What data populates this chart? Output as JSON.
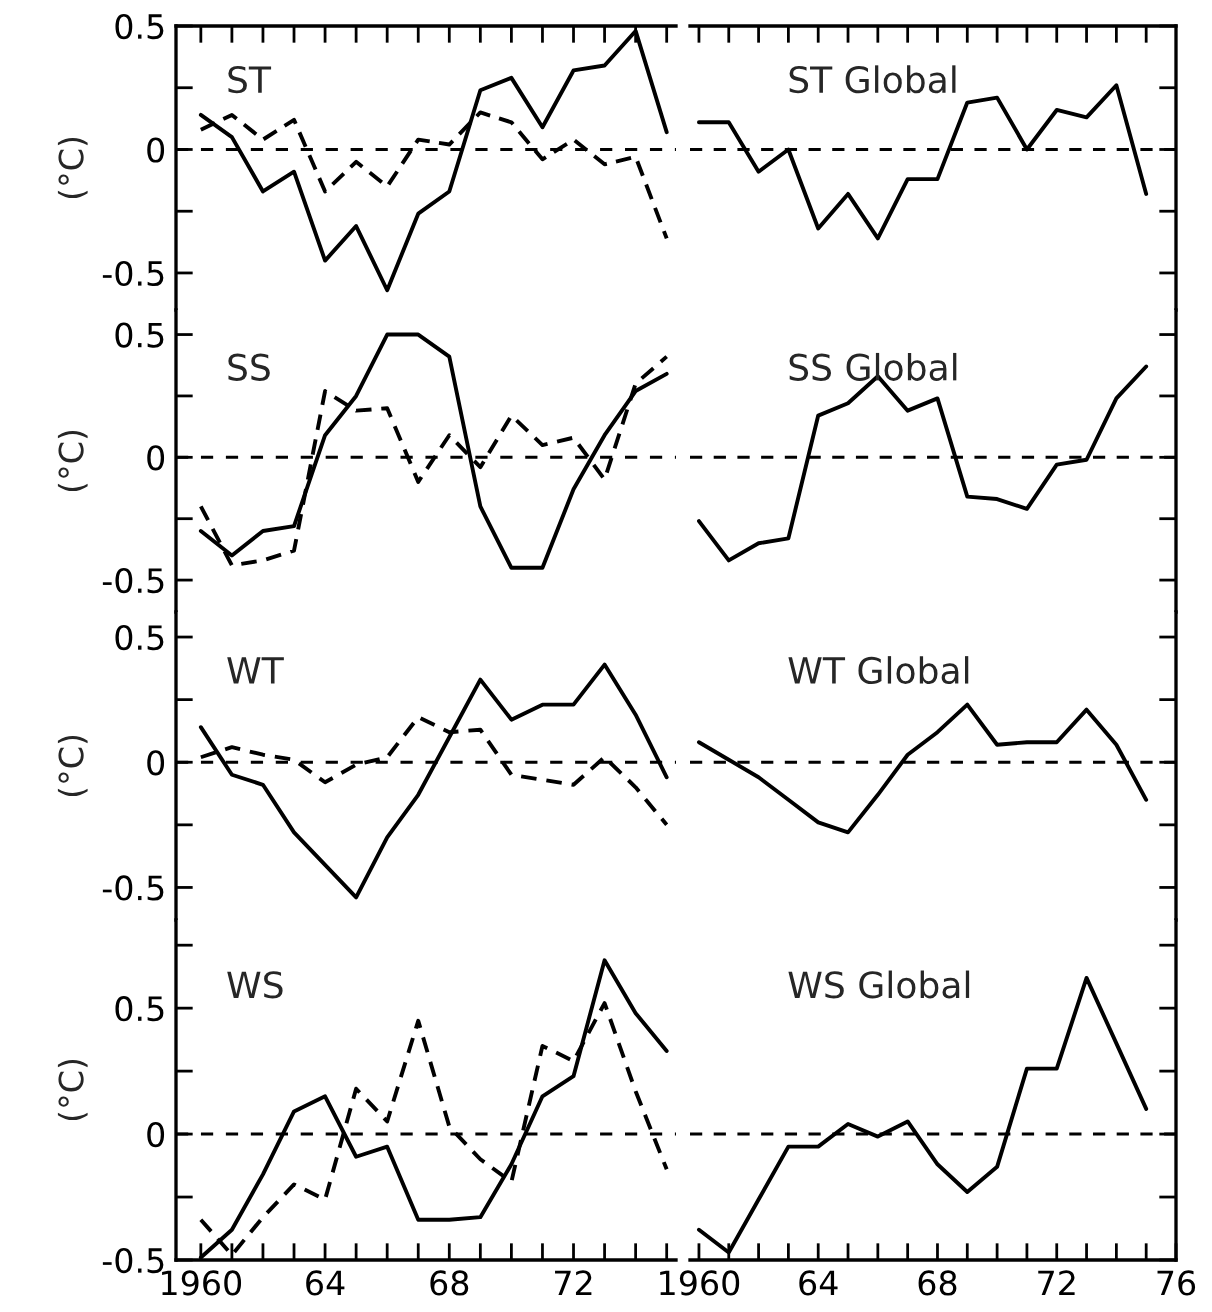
{
  "chart_data": [
    {
      "type": "line",
      "title": "ST",
      "ylabel": "(°C)",
      "x": [
        1960,
        1961,
        1962,
        1963,
        1964,
        1965,
        1966,
        1967,
        1968,
        1969,
        1970,
        1971,
        1972,
        1973,
        1974,
        1975
      ],
      "xlim": [
        1959.2,
        1975.3
      ],
      "xticks": [
        {
          "value": 1960,
          "label": null
        },
        {
          "value": 1961,
          "label": null
        },
        {
          "value": 1962,
          "label": null
        },
        {
          "value": 1963,
          "label": null
        },
        {
          "value": 1964,
          "label": null
        },
        {
          "value": 1965,
          "label": null
        },
        {
          "value": 1966,
          "label": null
        },
        {
          "value": 1967,
          "label": null
        },
        {
          "value": 1968,
          "label": null
        },
        {
          "value": 1969,
          "label": null
        },
        {
          "value": 1970,
          "label": null
        },
        {
          "value": 1971,
          "label": null
        },
        {
          "value": 1972,
          "label": null
        },
        {
          "value": 1973,
          "label": null
        },
        {
          "value": 1974,
          "label": null
        },
        {
          "value": 1975,
          "label": null
        }
      ],
      "ylim": [
        -0.65,
        0.5
      ],
      "yticks": [
        -0.5,
        {
          "value": -0.25,
          "label": null
        },
        0,
        {
          "value": 0.25,
          "label": null
        },
        0.5
      ],
      "tick_labels": "y",
      "grid": false,
      "legend": false,
      "ref_lines": [
        {
          "axis": "y",
          "value": 0,
          "color": "#000000",
          "line_style": "dashed"
        }
      ],
      "series": [
        {
          "color": "#000000",
          "line_style": "solid",
          "values": [
            0.14,
            0.05,
            -0.17,
            -0.09,
            -0.45,
            -0.31,
            -0.57,
            -0.26,
            -0.17,
            0.24,
            0.29,
            0.09,
            0.32,
            0.34,
            0.48,
            0.07
          ]
        },
        {
          "color": "#000000",
          "line_style": "dashed",
          "values": [
            0.08,
            0.14,
            0.04,
            0.12,
            -0.17,
            -0.05,
            -0.15,
            0.04,
            0.02,
            0.15,
            0.11,
            -0.04,
            0.04,
            -0.06,
            -0.03,
            -0.36
          ]
        }
      ]
    },
    {
      "type": "line",
      "title": "ST Global",
      "x": [
        1960,
        1961,
        1962,
        1963,
        1964,
        1965,
        1966,
        1967,
        1968,
        1969,
        1970,
        1971,
        1972,
        1973,
        1974,
        1975
      ],
      "xlim": [
        1959.7,
        1976
      ],
      "xticks": [
        {
          "value": 1960,
          "label": null
        },
        {
          "value": 1961,
          "label": null
        },
        {
          "value": 1962,
          "label": null
        },
        {
          "value": 1963,
          "label": null
        },
        {
          "value": 1964,
          "label": null
        },
        {
          "value": 1965,
          "label": null
        },
        {
          "value": 1966,
          "label": null
        },
        {
          "value": 1967,
          "label": null
        },
        {
          "value": 1968,
          "label": null
        },
        {
          "value": 1969,
          "label": null
        },
        {
          "value": 1970,
          "label": null
        },
        {
          "value": 1971,
          "label": null
        },
        {
          "value": 1972,
          "label": null
        },
        {
          "value": 1973,
          "label": null
        },
        {
          "value": 1974,
          "label": null
        },
        {
          "value": 1975,
          "label": null
        }
      ],
      "ylim": [
        -0.65,
        0.5
      ],
      "yticks": [
        {
          "value": -0.5,
          "label": null
        },
        {
          "value": -0.25,
          "label": null
        },
        {
          "value": 0,
          "label": null
        },
        {
          "value": 0.25,
          "label": null
        },
        {
          "value": 0.5,
          "label": null
        }
      ],
      "tick_labels": false,
      "grid": false,
      "legend": false,
      "ref_lines": [
        {
          "axis": "y",
          "value": 0,
          "color": "#000000",
          "line_style": "dashed"
        }
      ],
      "series": [
        {
          "color": "#000000",
          "line_style": "solid",
          "values": [
            0.11,
            0.11,
            -0.09,
            0,
            -0.32,
            -0.18,
            -0.36,
            -0.12,
            -0.12,
            0.19,
            0.21,
            0,
            0.16,
            0.13,
            0.26,
            -0.18
          ]
        }
      ]
    },
    {
      "type": "line",
      "title": "SS",
      "ylabel": "(°C)",
      "x": [
        1960,
        1961,
        1962,
        1963,
        1964,
        1965,
        1966,
        1967,
        1968,
        1969,
        1970,
        1971,
        1972,
        1973,
        1974,
        1975
      ],
      "xlim": [
        1959.2,
        1975.3
      ],
      "ylim": [
        -0.63,
        0.6
      ],
      "yticks": [
        -0.5,
        {
          "value": -0.25,
          "label": null
        },
        0,
        {
          "value": 0.25,
          "label": null
        },
        0.5
      ],
      "tick_labels": "y",
      "grid": false,
      "legend": false,
      "ref_lines": [
        {
          "axis": "y",
          "value": 0,
          "color": "#000000",
          "line_style": "dashed"
        }
      ],
      "series": [
        {
          "color": "#000000",
          "line_style": "solid",
          "values": [
            -0.3,
            -0.4,
            -0.3,
            -0.28,
            0.09,
            0.25,
            0.5,
            0.5,
            0.41,
            -0.2,
            -0.45,
            -0.45,
            -0.13,
            0.09,
            0.27,
            0.34
          ]
        },
        {
          "color": "#000000",
          "line_style": "dashed",
          "values": [
            -0.2,
            -0.44,
            -0.42,
            -0.38,
            0.27,
            0.19,
            0.2,
            -0.1,
            0.09,
            -0.04,
            0.17,
            0.05,
            0.08,
            -0.09,
            0.3,
            0.41
          ]
        }
      ]
    },
    {
      "type": "line",
      "title": "SS Global",
      "x": [
        1960,
        1961,
        1962,
        1963,
        1964,
        1965,
        1966,
        1967,
        1968,
        1969,
        1970,
        1971,
        1972,
        1973,
        1974,
        1975
      ],
      "xlim": [
        1959.7,
        1976
      ],
      "ylim": [
        -0.63,
        0.6
      ],
      "yticks": [
        {
          "value": -0.5,
          "label": null
        },
        {
          "value": -0.25,
          "label": null
        },
        {
          "value": 0,
          "label": null
        },
        {
          "value": 0.25,
          "label": null
        },
        {
          "value": 0.5,
          "label": null
        }
      ],
      "tick_labels": false,
      "grid": false,
      "legend": false,
      "ref_lines": [
        {
          "axis": "y",
          "value": 0,
          "color": "#000000",
          "line_style": "dashed"
        }
      ],
      "series": [
        {
          "color": "#000000",
          "line_style": "solid",
          "values": [
            -0.26,
            -0.42,
            -0.35,
            -0.33,
            0.17,
            0.22,
            0.33,
            0.19,
            0.24,
            -0.16,
            -0.17,
            -0.21,
            -0.03,
            -0.01,
            0.24,
            0.37
          ]
        }
      ]
    },
    {
      "type": "line",
      "title": "WT",
      "ylabel": "(°C)",
      "x": [
        1960,
        1961,
        1962,
        1963,
        1964,
        1965,
        1966,
        1967,
        1968,
        1969,
        1970,
        1971,
        1972,
        1973,
        1974,
        1975
      ],
      "xlim": [
        1959.2,
        1975.3
      ],
      "ylim": [
        -0.63,
        0.6
      ],
      "yticks": [
        -0.5,
        {
          "value": -0.25,
          "label": null
        },
        0,
        {
          "value": 0.25,
          "label": null
        },
        0.5
      ],
      "tick_labels": "y",
      "grid": false,
      "legend": false,
      "ref_lines": [
        {
          "axis": "y",
          "value": 0,
          "color": "#000000",
          "line_style": "dashed"
        }
      ],
      "series": [
        {
          "color": "#000000",
          "line_style": "solid",
          "values": [
            0.14,
            -0.05,
            -0.09,
            -0.28,
            -0.41,
            -0.54,
            -0.3,
            -0.13,
            0.1,
            0.33,
            0.17,
            0.23,
            0.23,
            0.39,
            0.19,
            -0.06
          ]
        },
        {
          "color": "#000000",
          "line_style": "dashed",
          "values": [
            0.02,
            0.06,
            0.03,
            0.01,
            -0.08,
            -0.01,
            0.02,
            0.18,
            0.12,
            0.13,
            -0.05,
            -0.07,
            -0.09,
            0.02,
            -0.1,
            -0.25
          ]
        }
      ]
    },
    {
      "type": "line",
      "title": "WT Global",
      "x": [
        1960,
        1961,
        1962,
        1963,
        1964,
        1965,
        1966,
        1967,
        1968,
        1969,
        1970,
        1971,
        1972,
        1973,
        1974,
        1975
      ],
      "xlim": [
        1959.7,
        1976
      ],
      "ylim": [
        -0.63,
        0.6
      ],
      "yticks": [
        {
          "value": -0.5,
          "label": null
        },
        {
          "value": -0.25,
          "label": null
        },
        {
          "value": 0,
          "label": null
        },
        {
          "value": 0.25,
          "label": null
        },
        {
          "value": 0.5,
          "label": null
        }
      ],
      "tick_labels": false,
      "grid": false,
      "legend": false,
      "ref_lines": [
        {
          "axis": "y",
          "value": 0,
          "color": "#000000",
          "line_style": "dashed"
        }
      ],
      "series": [
        {
          "color": "#000000",
          "line_style": "solid",
          "values": [
            0.08,
            0.01,
            -0.06,
            -0.15,
            -0.24,
            -0.28,
            -0.13,
            0.03,
            0.12,
            0.23,
            0.07,
            0.08,
            0.08,
            0.21,
            0.07,
            -0.15
          ]
        }
      ]
    },
    {
      "type": "line",
      "title": "WS",
      "ylabel": "(°C)",
      "x": [
        1960,
        1961,
        1962,
        1963,
        1964,
        1965,
        1966,
        1967,
        1968,
        1969,
        1970,
        1971,
        1972,
        1973,
        1974,
        1975
      ],
      "xlim": [
        1959.2,
        1975.3
      ],
      "xticks": [
        1960,
        {
          "value": 1961,
          "label": null
        },
        {
          "value": 1962,
          "label": null
        },
        {
          "value": 1963,
          "label": null
        },
        {
          "value": 1964,
          "label": "64"
        },
        {
          "value": 1965,
          "label": null
        },
        {
          "value": 1966,
          "label": null
        },
        {
          "value": 1967,
          "label": null
        },
        {
          "value": 1968,
          "label": "68"
        },
        {
          "value": 1969,
          "label": null
        },
        {
          "value": 1970,
          "label": null
        },
        {
          "value": 1971,
          "label": null
        },
        {
          "value": 1972,
          "label": "72"
        },
        {
          "value": 1973,
          "label": null
        },
        {
          "value": 1974,
          "label": null
        },
        {
          "value": 1975,
          "label": null
        }
      ],
      "ylim": [
        -0.5,
        0.85
      ],
      "yticks": [
        -0.5,
        {
          "value": -0.25,
          "label": null
        },
        0,
        {
          "value": 0.25,
          "label": null
        },
        0.5,
        {
          "value": 0.75,
          "label": null
        }
      ],
      "grid": false,
      "legend": false,
      "ref_lines": [
        {
          "axis": "y",
          "value": 0,
          "color": "#000000",
          "line_style": "dashed"
        }
      ],
      "series": [
        {
          "color": "#000000",
          "line_style": "solid",
          "values": [
            -0.49,
            -0.38,
            -0.16,
            0.09,
            0.15,
            -0.09,
            -0.05,
            -0.34,
            -0.34,
            -0.33,
            -0.12,
            0.15,
            0.23,
            0.69,
            0.48,
            0.33
          ]
        },
        {
          "color": "#000000",
          "line_style": "dashed",
          "values": [
            -0.34,
            -0.48,
            -0.33,
            -0.2,
            -0.26,
            0.18,
            0.05,
            0.45,
            0.03,
            -0.1,
            -0.19,
            0.35,
            0.29,
            0.52,
            0.17,
            -0.14
          ]
        }
      ]
    },
    {
      "type": "line",
      "title": "WS Global",
      "x": [
        1960,
        1961,
        1962,
        1963,
        1964,
        1965,
        1966,
        1967,
        1968,
        1969,
        1970,
        1971,
        1972,
        1973,
        1974,
        1975
      ],
      "xlim": [
        1959.7,
        1976
      ],
      "xticks": [
        1960,
        {
          "value": 1961,
          "label": null
        },
        {
          "value": 1962,
          "label": null
        },
        {
          "value": 1963,
          "label": null
        },
        {
          "value": 1964,
          "label": "64"
        },
        {
          "value": 1965,
          "label": null
        },
        {
          "value": 1966,
          "label": null
        },
        {
          "value": 1967,
          "label": null
        },
        {
          "value": 1968,
          "label": "68"
        },
        {
          "value": 1969,
          "label": null
        },
        {
          "value": 1970,
          "label": null
        },
        {
          "value": 1971,
          "label": null
        },
        {
          "value": 1972,
          "label": "72"
        },
        {
          "value": 1973,
          "label": null
        },
        {
          "value": 1974,
          "label": null
        },
        {
          "value": 1975,
          "label": null
        },
        {
          "value": 1976,
          "label": "76"
        }
      ],
      "ylim": [
        -0.5,
        0.85
      ],
      "yticks": [
        {
          "value": -0.5,
          "label": null
        },
        {
          "value": -0.25,
          "label": null
        },
        {
          "value": 0,
          "label": null
        },
        {
          "value": 0.25,
          "label": null
        },
        {
          "value": 0.5,
          "label": null
        },
        {
          "value": 0.75,
          "label": null
        }
      ],
      "tick_labels": "x",
      "grid": false,
      "legend": false,
      "ref_lines": [
        {
          "axis": "y",
          "value": 0,
          "color": "#000000",
          "line_style": "dashed"
        }
      ],
      "series": [
        {
          "color": "#000000",
          "line_style": "solid",
          "values": [
            -0.38,
            -0.47,
            -0.26,
            -0.05,
            -0.05,
            0.04,
            -0.01,
            0.05,
            -0.12,
            -0.23,
            -0.13,
            0.26,
            0.26,
            0.62,
            0.36,
            0.1
          ]
        }
      ]
    }
  ]
}
